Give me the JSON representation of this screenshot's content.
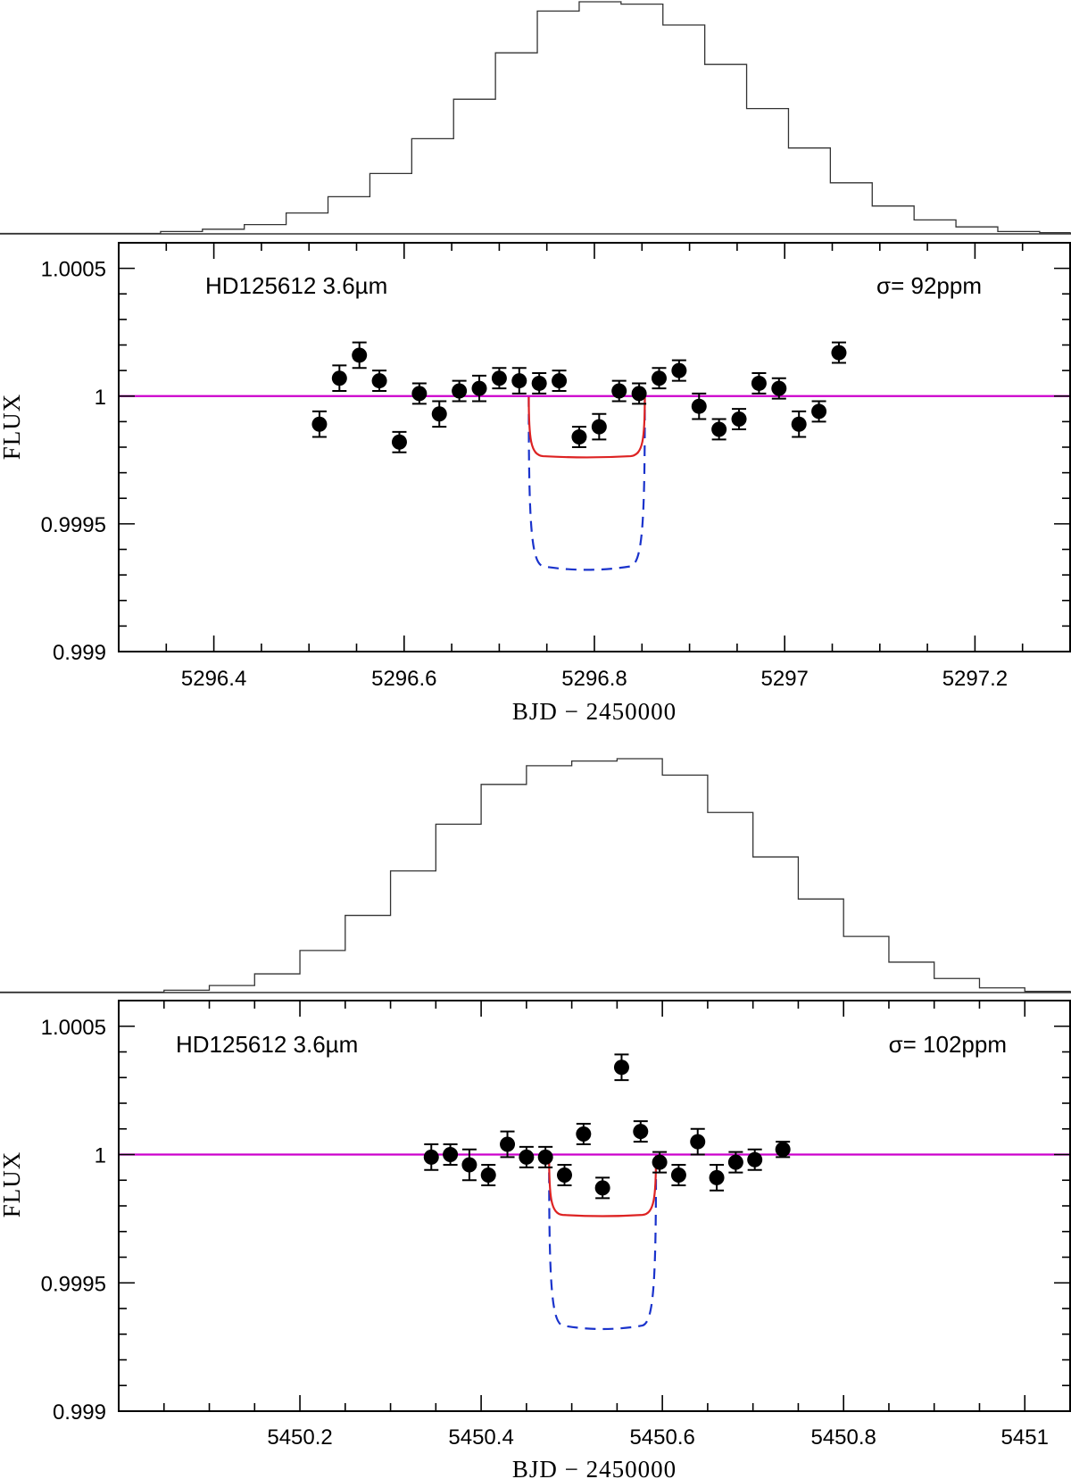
{
  "chart_data": [
    {
      "type": "scatter",
      "label": "HD125612 3.6µm",
      "stat": "σ= 92ppm",
      "xlabel": "BJD − 2450000",
      "ylabel": "FLUX",
      "xlim": [
        5296.3,
        5297.3
      ],
      "ylim": [
        0.999,
        1.0006
      ],
      "xticks": [
        5296.4,
        5296.6,
        5296.8,
        5297,
        5297.2
      ],
      "xtick_labels": [
        "5296.4",
        "5296.6",
        "5296.8",
        "5297",
        "5297.2"
      ],
      "yticks": [
        0.999,
        0.9995,
        1,
        1.0005
      ],
      "ytick_labels": [
        "0.999",
        "0.9995",
        "1",
        "1.0005"
      ],
      "points": [
        {
          "x": 5296.511,
          "y": 0.99989,
          "err": 5e-05
        },
        {
          "x": 5296.532,
          "y": 1.00007,
          "err": 5e-05
        },
        {
          "x": 5296.553,
          "y": 1.00016,
          "err": 5e-05
        },
        {
          "x": 5296.574,
          "y": 1.00006,
          "err": 4e-05
        },
        {
          "x": 5296.595,
          "y": 0.99982,
          "err": 4e-05
        },
        {
          "x": 5296.616,
          "y": 1.00001,
          "err": 4e-05
        },
        {
          "x": 5296.637,
          "y": 0.99993,
          "err": 5e-05
        },
        {
          "x": 5296.658,
          "y": 1.00002,
          "err": 4e-05
        },
        {
          "x": 5296.679,
          "y": 1.00003,
          "err": 5e-05
        },
        {
          "x": 5296.7,
          "y": 1.00007,
          "err": 4e-05
        },
        {
          "x": 5296.721,
          "y": 1.00006,
          "err": 5e-05
        },
        {
          "x": 5296.742,
          "y": 1.00005,
          "err": 4e-05
        },
        {
          "x": 5296.763,
          "y": 1.00006,
          "err": 4e-05
        },
        {
          "x": 5296.784,
          "y": 0.99984,
          "err": 4e-05
        },
        {
          "x": 5296.805,
          "y": 0.99988,
          "err": 5e-05
        },
        {
          "x": 5296.826,
          "y": 1.00002,
          "err": 4e-05
        },
        {
          "x": 5296.847,
          "y": 1.00001,
          "err": 4e-05
        },
        {
          "x": 5296.868,
          "y": 1.00007,
          "err": 4e-05
        },
        {
          "x": 5296.889,
          "y": 1.0001,
          "err": 4e-05
        },
        {
          "x": 5296.91,
          "y": 0.99996,
          "err": 5e-05
        },
        {
          "x": 5296.931,
          "y": 0.99987,
          "err": 4e-05
        },
        {
          "x": 5296.952,
          "y": 0.99991,
          "err": 4e-05
        },
        {
          "x": 5296.973,
          "y": 1.00005,
          "err": 4e-05
        },
        {
          "x": 5296.994,
          "y": 1.00003,
          "err": 4e-05
        },
        {
          "x": 5297.015,
          "y": 0.99989,
          "err": 5e-05
        },
        {
          "x": 5297.036,
          "y": 0.99994,
          "err": 4e-05
        },
        {
          "x": 5297.057,
          "y": 1.00017,
          "err": 4e-05
        }
      ],
      "baseline": {
        "name": "baseline",
        "y": 1.0,
        "color": "#cc00cc"
      },
      "transit": {
        "start": 5296.731,
        "end": 5296.853,
        "ingress": 0.006
      },
      "model_shallow": {
        "name": "shallow model",
        "depth": 0.00024,
        "color": "#dd2222",
        "style": "solid"
      },
      "model_deep": {
        "name": "deep model",
        "depth": 0.00068,
        "color": "#1a33cc",
        "style": "dashed"
      },
      "histogram": {
        "name": "probability distribution",
        "counts": [
          0.2,
          1,
          2,
          4,
          9,
          16,
          26,
          41,
          58,
          78,
          96,
          100,
          99,
          90,
          73,
          54,
          37,
          22,
          12,
          6,
          3,
          1,
          0.5
        ],
        "bin_edges": [
          5296.3,
          5296.344,
          5296.388,
          5296.432,
          5296.476,
          5296.52,
          5296.564,
          5296.608,
          5296.652,
          5296.696,
          5296.74,
          5296.784,
          5296.828,
          5296.872,
          5296.916,
          5296.96,
          5297.004,
          5297.048,
          5297.092,
          5297.136,
          5297.18,
          5297.224,
          5297.268,
          5297.3
        ]
      }
    },
    {
      "type": "scatter",
      "label": "HD125612 3.6µm",
      "stat": "σ= 102ppm",
      "xlabel": "BJD − 2450000",
      "ylabel": "FLUX",
      "xlim": [
        5450.0,
        5451.05
      ],
      "ylim": [
        0.999,
        1.0006
      ],
      "xticks": [
        5450.2,
        5450.4,
        5450.6,
        5450.8,
        5451
      ],
      "xtick_labels": [
        "5450.2",
        "5450.4",
        "5450.6",
        "5450.8",
        "5451"
      ],
      "yticks": [
        0.999,
        0.9995,
        1,
        1.0005
      ],
      "ytick_labels": [
        "0.999",
        "0.9995",
        "1",
        "1.0005"
      ],
      "points": [
        {
          "x": 5450.345,
          "y": 0.99999,
          "err": 5e-05
        },
        {
          "x": 5450.366,
          "y": 1.0,
          "err": 4e-05
        },
        {
          "x": 5450.387,
          "y": 0.99996,
          "err": 6e-05
        },
        {
          "x": 5450.408,
          "y": 0.99992,
          "err": 4e-05
        },
        {
          "x": 5450.429,
          "y": 1.00004,
          "err": 5e-05
        },
        {
          "x": 5450.45,
          "y": 0.99999,
          "err": 4e-05
        },
        {
          "x": 5450.471,
          "y": 0.99999,
          "err": 4e-05
        },
        {
          "x": 5450.492,
          "y": 0.99992,
          "err": 4e-05
        },
        {
          "x": 5450.513,
          "y": 1.00008,
          "err": 4e-05
        },
        {
          "x": 5450.534,
          "y": 0.99987,
          "err": 4e-05
        },
        {
          "x": 5450.555,
          "y": 1.00034,
          "err": 5e-05
        },
        {
          "x": 5450.576,
          "y": 1.00009,
          "err": 4e-05
        },
        {
          "x": 5450.597,
          "y": 0.99997,
          "err": 4e-05
        },
        {
          "x": 5450.618,
          "y": 0.99992,
          "err": 4e-05
        },
        {
          "x": 5450.639,
          "y": 1.00005,
          "err": 5e-05
        },
        {
          "x": 5450.66,
          "y": 0.99991,
          "err": 5e-05
        },
        {
          "x": 5450.681,
          "y": 0.99997,
          "err": 4e-05
        },
        {
          "x": 5450.702,
          "y": 0.99998,
          "err": 4e-05
        },
        {
          "x": 5450.733,
          "y": 1.00002,
          "err": 3e-05
        }
      ],
      "baseline": {
        "name": "baseline",
        "y": 1.0,
        "color": "#cc00cc"
      },
      "transit": {
        "start": 5450.475,
        "end": 5450.593,
        "ingress": 0.006
      },
      "model_shallow": {
        "name": "shallow model",
        "depth": 0.00024,
        "color": "#dd2222",
        "style": "solid"
      },
      "model_deep": {
        "name": "deep model",
        "depth": 0.00068,
        "color": "#1a33cc",
        "style": "dashed"
      },
      "histogram": {
        "name": "probability distribution",
        "counts": [
          0.2,
          1,
          3,
          8,
          18,
          33,
          52,
          72,
          89,
          97,
          99,
          100,
          93,
          77,
          58,
          40,
          24,
          13,
          6,
          2,
          0.5
        ],
        "bin_edges": [
          5450.0,
          5450.05,
          5450.1,
          5450.15,
          5450.2,
          5450.25,
          5450.3,
          5450.35,
          5450.4,
          5450.45,
          5450.5,
          5450.55,
          5450.6,
          5450.65,
          5450.7,
          5450.75,
          5450.8,
          5450.85,
          5450.9,
          5450.95,
          5451.0,
          5451.05
        ]
      }
    }
  ]
}
